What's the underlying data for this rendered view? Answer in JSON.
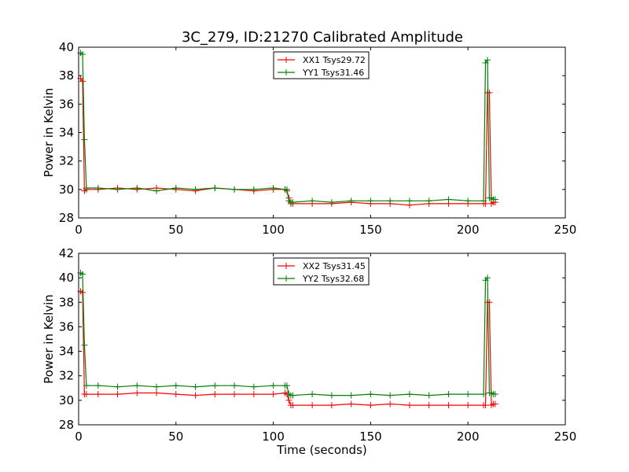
{
  "figure_title": "3C_279, ID:21270 Calibrated Amplitude",
  "chart_data": [
    {
      "type": "line",
      "title": "3C_279, ID:21270 Calibrated Amplitude",
      "xlabel": "",
      "ylabel": "Power in Kelvin",
      "xlim": [
        0,
        250
      ],
      "ylim": [
        28,
        40
      ],
      "xticks": [
        "0",
        "50",
        "100",
        "150",
        "200",
        "250"
      ],
      "yticks": [
        "28",
        "30",
        "32",
        "34",
        "36",
        "38",
        "40"
      ],
      "grid": false,
      "legend_placement": "top-center",
      "series": [
        {
          "name": "XX1 Tsys29.72",
          "color": "#ff0000",
          "x": [
            1,
            2,
            3,
            4,
            10,
            20,
            30,
            40,
            50,
            60,
            70,
            80,
            90,
            100,
            106,
            107,
            108,
            109,
            110,
            120,
            130,
            140,
            150,
            160,
            170,
            180,
            190,
            200,
            208,
            209,
            210,
            211,
            212,
            213,
            214
          ],
          "y": [
            37.8,
            37.6,
            29.9,
            30.0,
            30.0,
            30.1,
            30.0,
            30.1,
            30.0,
            29.9,
            30.1,
            30.0,
            29.9,
            30.0,
            30.0,
            29.9,
            29.4,
            29.0,
            29.0,
            29.0,
            29.0,
            29.1,
            29.0,
            29.0,
            28.9,
            29.0,
            29.0,
            29.0,
            29.0,
            29.0,
            36.8,
            36.8,
            29.0,
            29.1,
            29.1
          ]
        },
        {
          "name": "YY1 Tsys31.46",
          "color": "#008000",
          "x": [
            1,
            2,
            3,
            4,
            10,
            20,
            30,
            40,
            50,
            60,
            70,
            80,
            90,
            100,
            106,
            107,
            108,
            109,
            110,
            120,
            130,
            140,
            150,
            160,
            170,
            180,
            190,
            200,
            208,
            209,
            210,
            211,
            212,
            213,
            214
          ],
          "y": [
            39.6,
            39.5,
            33.5,
            30.1,
            30.1,
            30.0,
            30.1,
            29.9,
            30.1,
            30.0,
            30.1,
            30.0,
            30.0,
            30.1,
            30.0,
            30.0,
            29.2,
            29.1,
            29.1,
            29.2,
            29.1,
            29.2,
            29.2,
            29.2,
            29.2,
            29.2,
            29.3,
            29.2,
            29.2,
            38.9,
            39.1,
            29.4,
            29.4,
            29.3,
            29.3
          ]
        }
      ]
    },
    {
      "type": "line",
      "title": "",
      "xlabel": "Time (seconds)",
      "ylabel": "Power in Kelvin",
      "xlim": [
        0,
        250
      ],
      "ylim": [
        28,
        42
      ],
      "xticks": [
        "0",
        "50",
        "100",
        "150",
        "200",
        "250"
      ],
      "yticks": [
        "28",
        "30",
        "32",
        "34",
        "36",
        "38",
        "40",
        "42"
      ],
      "grid": false,
      "legend_placement": "top-center",
      "series": [
        {
          "name": "XX2 Tsys31.45",
          "color": "#ff0000",
          "x": [
            1,
            2,
            3,
            4,
            10,
            20,
            30,
            40,
            50,
            60,
            70,
            80,
            90,
            100,
            106,
            107,
            108,
            109,
            110,
            120,
            130,
            140,
            150,
            160,
            170,
            180,
            190,
            200,
            208,
            209,
            210,
            211,
            212,
            213,
            214
          ],
          "y": [
            38.9,
            38.8,
            30.5,
            30.5,
            30.5,
            30.5,
            30.6,
            30.6,
            30.5,
            30.4,
            30.5,
            30.5,
            30.5,
            30.5,
            30.6,
            30.5,
            30.0,
            29.6,
            29.6,
            29.6,
            29.6,
            29.7,
            29.6,
            29.7,
            29.6,
            29.6,
            29.6,
            29.6,
            29.6,
            29.6,
            38.0,
            38.0,
            29.6,
            29.7,
            29.7
          ]
        },
        {
          "name": "YY2 Tsys32.68",
          "color": "#008000",
          "x": [
            1,
            2,
            3,
            4,
            10,
            20,
            30,
            40,
            50,
            60,
            70,
            80,
            90,
            100,
            106,
            107,
            108,
            109,
            110,
            120,
            130,
            140,
            150,
            160,
            170,
            180,
            190,
            200,
            208,
            209,
            210,
            211,
            212,
            213,
            214
          ],
          "y": [
            40.4,
            40.3,
            34.5,
            31.2,
            31.2,
            31.1,
            31.2,
            31.1,
            31.2,
            31.1,
            31.2,
            31.2,
            31.1,
            31.2,
            31.2,
            31.2,
            30.5,
            30.4,
            30.4,
            30.5,
            30.4,
            30.4,
            30.5,
            30.4,
            30.5,
            30.4,
            30.5,
            30.5,
            30.5,
            39.8,
            40.0,
            30.6,
            30.6,
            30.5,
            30.5
          ]
        }
      ]
    }
  ]
}
